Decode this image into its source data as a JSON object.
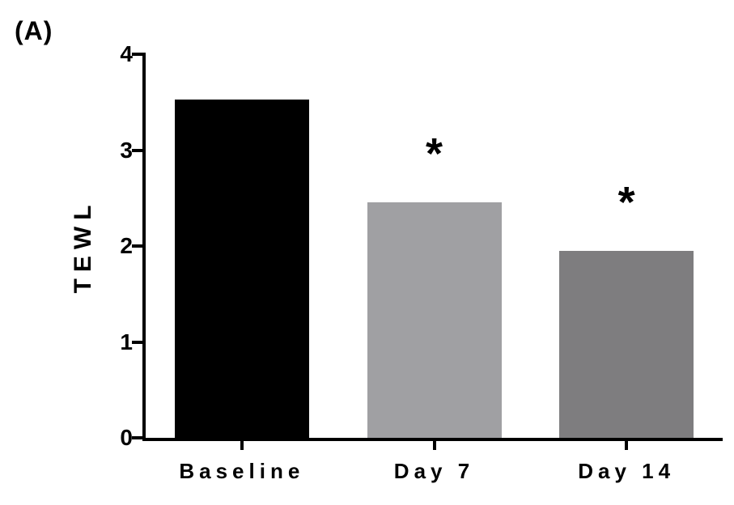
{
  "panel_label": "(A)",
  "colors": {
    "background": "#ffffff",
    "axis": "#000000",
    "text": "#000000"
  },
  "chart_data": {
    "type": "bar",
    "title": "",
    "ylabel": "TEWL",
    "xlabel": "",
    "categories": [
      "Baseline",
      "Day 7",
      "Day 14"
    ],
    "values": [
      3.53,
      2.46,
      1.95
    ],
    "bar_colors": [
      "#000000",
      "#a0a0a3",
      "#7e7d7f"
    ],
    "ylim": [
      0,
      4
    ],
    "yticks": [
      0,
      1,
      2,
      3,
      4
    ],
    "grid": false,
    "legend": "none",
    "annotations": [
      {
        "category": "Day 7",
        "text": "*"
      },
      {
        "category": "Day 14",
        "text": "*"
      }
    ]
  }
}
